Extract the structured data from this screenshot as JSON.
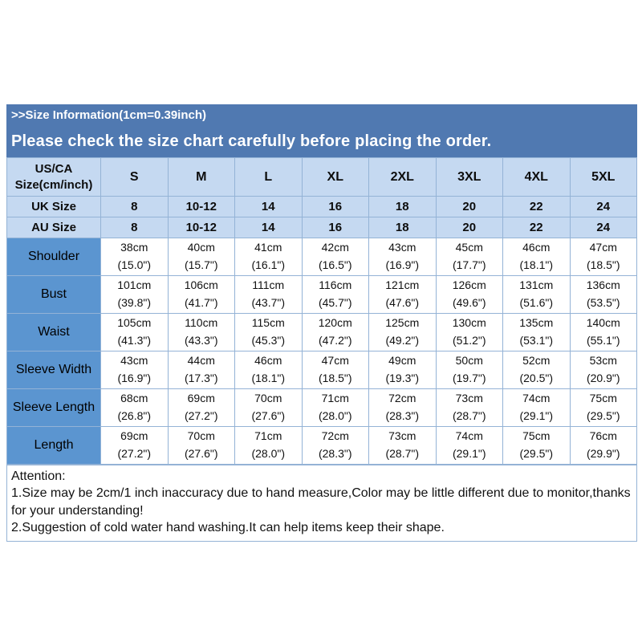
{
  "banner": {
    "line1": ">>Size Information(1cm=0.39inch)",
    "line2": "Please check the size chart carefully before placing the order."
  },
  "table": {
    "corner": {
      "line1": "US/CA",
      "line2": "Size(cm/inch)"
    },
    "size_columns": [
      "S",
      "M",
      "L",
      "XL",
      "2XL",
      "3XL",
      "4XL",
      "5XL"
    ],
    "size_rows": [
      {
        "label": "UK Size",
        "values": [
          "8",
          "10-12",
          "14",
          "16",
          "18",
          "20",
          "22",
          "24"
        ]
      },
      {
        "label": "AU Size",
        "values": [
          "8",
          "10-12",
          "14",
          "16",
          "18",
          "20",
          "22",
          "24"
        ]
      }
    ],
    "measurement_rows": [
      {
        "label": "Shoulder",
        "cm": [
          "38cm",
          "40cm",
          "41cm",
          "42cm",
          "43cm",
          "45cm",
          "46cm",
          "47cm"
        ],
        "inch": [
          "(15.0\")",
          "(15.7\")",
          "(16.1\")",
          "(16.5\")",
          "(16.9\")",
          "(17.7\")",
          "(18.1\")",
          "(18.5\")"
        ]
      },
      {
        "label": "Bust",
        "cm": [
          "101cm",
          "106cm",
          "111cm",
          "116cm",
          "121cm",
          "126cm",
          "131cm",
          "136cm"
        ],
        "inch": [
          "(39.8\")",
          "(41.7\")",
          "(43.7\")",
          "(45.7\")",
          "(47.6\")",
          "(49.6\")",
          "(51.6\")",
          "(53.5\")"
        ]
      },
      {
        "label": "Waist",
        "cm": [
          "105cm",
          "110cm",
          "115cm",
          "120cm",
          "125cm",
          "130cm",
          "135cm",
          "140cm"
        ],
        "inch": [
          "(41.3\")",
          "(43.3\")",
          "(45.3\")",
          "(47.2\")",
          "(49.2\")",
          "(51.2\")",
          "(53.1\")",
          "(55.1\")"
        ]
      },
      {
        "label": "Sleeve Width",
        "cm": [
          "43cm",
          "44cm",
          "46cm",
          "47cm",
          "49cm",
          "50cm",
          "52cm",
          "53cm"
        ],
        "inch": [
          "(16.9\")",
          "(17.3\")",
          "(18.1\")",
          "(18.5\")",
          "(19.3\")",
          "(19.7\")",
          "(20.5\")",
          "(20.9\")"
        ]
      },
      {
        "label": "Sleeve Length",
        "cm": [
          "68cm",
          "69cm",
          "70cm",
          "71cm",
          "72cm",
          "73cm",
          "74cm",
          "75cm"
        ],
        "inch": [
          "(26.8\")",
          "(27.2\")",
          "(27.6\")",
          "(28.0\")",
          "(28.3\")",
          "(28.7\")",
          "(29.1\")",
          "(29.5\")"
        ]
      },
      {
        "label": "Length",
        "cm": [
          "69cm",
          "70cm",
          "71cm",
          "72cm",
          "73cm",
          "74cm",
          "75cm",
          "76cm"
        ],
        "inch": [
          "(27.2\")",
          "(27.6\")",
          "(28.0\")",
          "(28.3\")",
          "(28.7\")",
          "(29.1\")",
          "(29.5\")",
          "(29.9\")"
        ]
      }
    ]
  },
  "attention": {
    "title": "Attention:",
    "notes": [
      "1.Size may be 2cm/1 inch inaccuracy due to hand measure,Color may be little different due to monitor,thanks for your understanding!",
      "2.Suggestion of cold water hand washing.It can help items keep their shape."
    ]
  },
  "colors": {
    "banner_bg": "#5079b1",
    "header_cell_bg": "#c5d9f1",
    "row_label_bg": "#5b95d0",
    "grid_border": "#94b3d6",
    "text": "#111111",
    "banner_text": "#ffffff"
  },
  "chart_data": {
    "type": "table",
    "title": "Size Information(1cm=0.39inch)",
    "columns": [
      "US/CA Size(cm/inch)",
      "S",
      "M",
      "L",
      "XL",
      "2XL",
      "3XL",
      "4XL",
      "5XL"
    ],
    "rows": [
      [
        "UK Size",
        "8",
        "10-12",
        "14",
        "16",
        "18",
        "20",
        "22",
        "24"
      ],
      [
        "AU Size",
        "8",
        "10-12",
        "14",
        "16",
        "18",
        "20",
        "22",
        "24"
      ],
      [
        "Shoulder",
        "38cm (15.0\")",
        "40cm (15.7\")",
        "41cm (16.1\")",
        "42cm (16.5\")",
        "43cm (16.9\")",
        "45cm (17.7\")",
        "46cm (18.1\")",
        "47cm (18.5\")"
      ],
      [
        "Bust",
        "101cm (39.8\")",
        "106cm (41.7\")",
        "111cm (43.7\")",
        "116cm (45.7\")",
        "121cm (47.6\")",
        "126cm (49.6\")",
        "131cm (51.6\")",
        "136cm (53.5\")"
      ],
      [
        "Waist",
        "105cm (41.3\")",
        "110cm (43.3\")",
        "115cm (45.3\")",
        "120cm (47.2\")",
        "125cm (49.2\")",
        "130cm (51.2\")",
        "135cm (53.1\")",
        "140cm (55.1\")"
      ],
      [
        "Sleeve Width",
        "43cm (16.9\")",
        "44cm (17.3\")",
        "46cm (18.1\")",
        "47cm (18.5\")",
        "49cm (19.3\")",
        "50cm (19.7\")",
        "52cm (20.5\")",
        "53cm (20.9\")"
      ],
      [
        "Sleeve Length",
        "68cm (26.8\")",
        "69cm (27.2\")",
        "70cm (27.6\")",
        "71cm (28.0\")",
        "72cm (28.3\")",
        "73cm (28.7\")",
        "74cm (29.1\")",
        "75cm (29.5\")"
      ],
      [
        "Length",
        "69cm (27.2\")",
        "70cm (27.6\")",
        "71cm (28.0\")",
        "72cm (28.3\")",
        "73cm (28.7\")",
        "74cm (29.1\")",
        "75cm (29.5\")",
        "76cm (29.9\")"
      ]
    ]
  }
}
